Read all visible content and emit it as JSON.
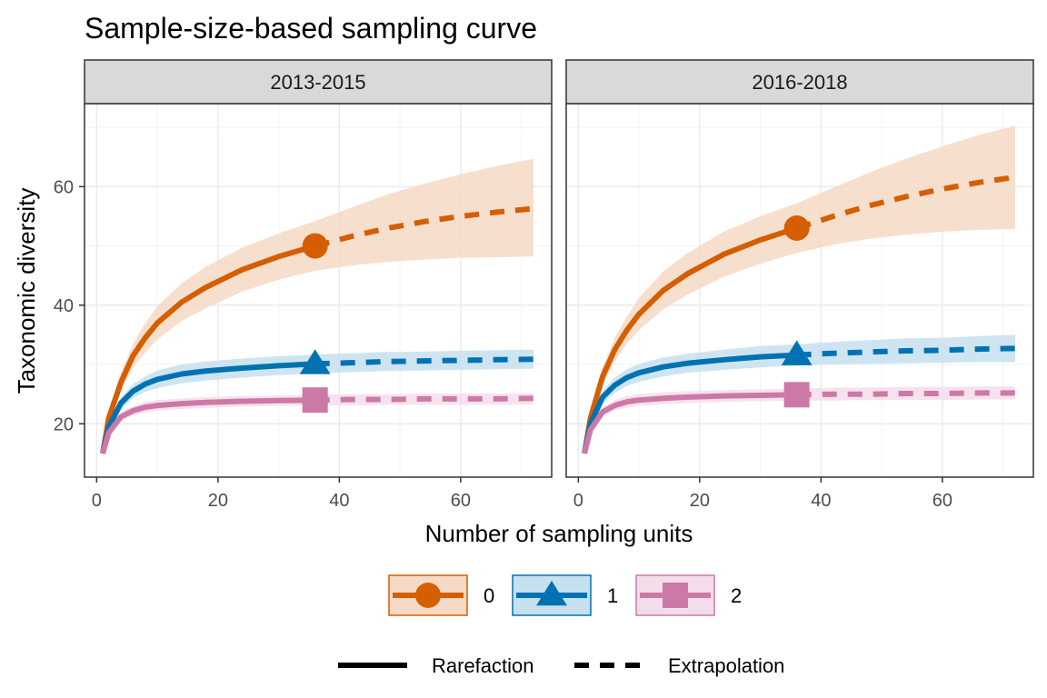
{
  "chart_data": {
    "type": "line",
    "title": "Sample-size-based sampling curve",
    "xlabel": "Number of sampling units",
    "ylabel": "Taxonomic diversity",
    "xlim": [
      -2,
      75
    ],
    "ylim": [
      11,
      74
    ],
    "x_ticks": [
      0,
      20,
      40,
      60
    ],
    "y_ticks": [
      20,
      40,
      60
    ],
    "grid": true,
    "legend_position": "bottom",
    "order_legend": {
      "entries": [
        {
          "label": "0",
          "color": "#D55E00",
          "fill": "#F6D9C6",
          "shape": "circle"
        },
        {
          "label": "1",
          "color": "#0072B2",
          "fill": "#C6E0EF",
          "shape": "triangle"
        },
        {
          "label": "2",
          "color": "#CC79A7",
          "fill": "#F4DDEA",
          "shape": "square"
        }
      ]
    },
    "method_legend": {
      "entries": [
        {
          "label": "Rarefaction",
          "linetype": "solid"
        },
        {
          "label": "Extrapolation",
          "linetype": "dashed"
        }
      ]
    },
    "panels": [
      {
        "strip": "2013-2015",
        "reference_size": 36,
        "series": [
          {
            "order": "0",
            "color": "#D55E00",
            "band": "#F6D9C6",
            "x": [
              1,
              2,
              4,
              6,
              8,
              10,
              14,
              18,
              24,
              30,
              36,
              42,
              48,
              54,
              60,
              66,
              72
            ],
            "y": [
              15,
              21,
              27,
              31.5,
              34.5,
              37,
              40.5,
              43,
              46,
              48.2,
              50,
              51.6,
              53,
              54.1,
              55,
              55.7,
              56.3
            ],
            "lower": [
              14.5,
              20,
              25.5,
              29.5,
              32,
              34.2,
              37.3,
              39.5,
              42.3,
              44.3,
              45.8,
              46.7,
              47.3,
              47.7,
              48,
              48.1,
              48.2
            ],
            "upper": [
              15.5,
              22,
              28.5,
              33.5,
              37,
              39.8,
              43.7,
              46.5,
              49.7,
              52.1,
              54.2,
              56.5,
              58.7,
              60.5,
              62.1,
              63.5,
              64.7
            ]
          },
          {
            "order": "1",
            "color": "#0072B2",
            "band": "#C6E0EF",
            "x": [
              1,
              2,
              4,
              6,
              8,
              10,
              14,
              18,
              24,
              30,
              36,
              42,
              48,
              54,
              60,
              66,
              72
            ],
            "y": [
              15,
              19.5,
              23.5,
              25.5,
              26.7,
              27.5,
              28.4,
              28.9,
              29.4,
              29.8,
              30.1,
              30.3,
              30.5,
              30.6,
              30.7,
              30.8,
              30.9
            ],
            "lower": [
              14.5,
              19,
              22.5,
              24.3,
              25.4,
              26,
              26.8,
              27.3,
              27.8,
              28.2,
              28.5,
              28.7,
              28.9,
              29,
              29.1,
              29.2,
              29.3
            ],
            "upper": [
              15.5,
              20,
              24.5,
              26.7,
              28,
              29,
              30,
              30.5,
              31,
              31.4,
              31.7,
              31.9,
              32.1,
              32.2,
              32.3,
              32.4,
              32.5
            ]
          },
          {
            "order": "2",
            "color": "#CC79A7",
            "band": "#F4DDEA",
            "x": [
              1,
              2,
              4,
              6,
              8,
              10,
              14,
              18,
              24,
              30,
              36,
              42,
              48,
              54,
              60,
              66,
              72
            ],
            "y": [
              15,
              18.5,
              21.2,
              22.2,
              22.8,
              23.1,
              23.4,
              23.6,
              23.8,
              23.9,
              24,
              24.1,
              24.1,
              24.2,
              24.2,
              24.2,
              24.3
            ],
            "lower": [
              14.5,
              18,
              20.5,
              21.4,
              21.9,
              22.2,
              22.5,
              22.7,
              22.9,
              23,
              23.1,
              23.1,
              23.2,
              23.2,
              23.2,
              23.2,
              23.3
            ],
            "upper": [
              15.5,
              19,
              21.9,
              23,
              23.7,
              24,
              24.3,
              24.5,
              24.7,
              24.8,
              24.9,
              25,
              25,
              25.1,
              25.1,
              25.1,
              25.2
            ]
          }
        ]
      },
      {
        "strip": "2016-2018",
        "reference_size": 36,
        "series": [
          {
            "order": "0",
            "color": "#D55E00",
            "band": "#F6D9C6",
            "x": [
              1,
              2,
              4,
              6,
              8,
              10,
              14,
              18,
              24,
              30,
              36,
              42,
              48,
              54,
              60,
              66,
              72
            ],
            "y": [
              15,
              21,
              28,
              32.5,
              35.8,
              38.5,
              42.5,
              45.3,
              48.6,
              51,
              53,
              55,
              56.8,
              58.3,
              59.6,
              60.7,
              61.6
            ],
            "lower": [
              14.5,
              20,
              26.5,
              30.5,
              33.5,
              35.8,
              39.3,
              41.8,
              44.8,
              47,
              48.8,
              50.2,
              51.2,
              51.9,
              52.4,
              52.7,
              52.9
            ],
            "upper": [
              15.5,
              22,
              29.5,
              34.5,
              38.1,
              41.2,
              45.7,
              48.8,
              52.4,
              55,
              57.2,
              59.8,
              62.4,
              64.7,
              66.8,
              68.7,
              70.3
            ]
          },
          {
            "order": "1",
            "color": "#0072B2",
            "band": "#C6E0EF",
            "x": [
              1,
              2,
              4,
              6,
              8,
              10,
              14,
              18,
              24,
              30,
              36,
              42,
              48,
              54,
              60,
              66,
              72
            ],
            "y": [
              15,
              20,
              24.5,
              26.5,
              27.8,
              28.6,
              29.6,
              30.2,
              30.8,
              31.3,
              31.6,
              31.9,
              32.1,
              32.3,
              32.4,
              32.6,
              32.7
            ],
            "lower": [
              14.5,
              19.5,
              23.4,
              25.2,
              26.4,
              27.1,
              28,
              28.6,
              29.1,
              29.5,
              29.8,
              30,
              30.1,
              30.2,
              30.3,
              30.4,
              30.4
            ],
            "upper": [
              15.5,
              20.5,
              25.6,
              27.8,
              29.2,
              30.1,
              31.2,
              31.8,
              32.5,
              33.1,
              33.4,
              33.8,
              34.1,
              34.4,
              34.5,
              34.8,
              35
            ]
          },
          {
            "order": "2",
            "color": "#CC79A7",
            "band": "#F4DDEA",
            "x": [
              1,
              2,
              4,
              6,
              8,
              10,
              14,
              18,
              24,
              30,
              36,
              42,
              48,
              54,
              60,
              66,
              72
            ],
            "y": [
              15,
              19,
              22,
              23.1,
              23.7,
              24,
              24.3,
              24.5,
              24.7,
              24.8,
              24.9,
              25,
              25,
              25.1,
              25.1,
              25.2,
              25.2
            ],
            "lower": [
              14.5,
              18.5,
              21.2,
              22.2,
              22.7,
              23,
              23.3,
              23.5,
              23.7,
              23.8,
              23.9,
              23.9,
              24,
              24,
              24,
              24.1,
              24.1
            ],
            "upper": [
              15.5,
              19.5,
              22.8,
              24,
              24.7,
              25,
              25.3,
              25.5,
              25.7,
              25.8,
              25.9,
              26.1,
              26.1,
              26.2,
              26.2,
              26.3,
              26.3
            ]
          }
        ]
      }
    ]
  }
}
